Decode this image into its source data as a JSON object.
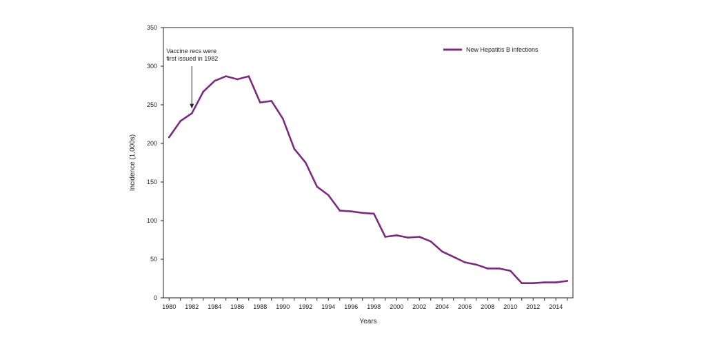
{
  "chart_data": {
    "type": "line",
    "title": "",
    "xlabel": "Years",
    "ylabel": "Incidence (1,000s)",
    "xlim": [
      1979.5,
      2015.5
    ],
    "ylim": [
      0,
      350
    ],
    "x_ticks": [
      1980,
      1982,
      1984,
      1986,
      1988,
      1990,
      1992,
      1994,
      1996,
      1998,
      2000,
      2002,
      2004,
      2006,
      2008,
      2010,
      2012,
      2014
    ],
    "x_tick_labels": [
      "1980",
      "1982",
      "1984",
      "1986",
      "1988",
      "1990",
      "1992",
      "1994",
      "1996",
      "1998",
      "2000",
      "2002",
      "2004",
      "2006",
      "2008",
      "2010",
      "2012",
      "2014"
    ],
    "y_ticks": [
      0,
      50,
      100,
      150,
      200,
      250,
      300,
      350
    ],
    "y_tick_labels": [
      "0",
      "50",
      "100",
      "150",
      "200",
      "250",
      "300",
      "350"
    ],
    "grid": false,
    "legend_position": "top-right",
    "series": [
      {
        "name": "New Hepatitis B infections",
        "color": "#7b2a7e",
        "x": [
          1980,
          1981,
          1982,
          1983,
          1984,
          1985,
          1986,
          1987,
          1988,
          1989,
          1990,
          1991,
          1992,
          1993,
          1994,
          1995,
          1996,
          1997,
          1998,
          1999,
          2000,
          2001,
          2002,
          2003,
          2004,
          2005,
          2006,
          2007,
          2008,
          2009,
          2010,
          2011,
          2012,
          2013,
          2014,
          2015
        ],
        "values": [
          208,
          229,
          239,
          267,
          281,
          287,
          283,
          287,
          253,
          255,
          232,
          193,
          175,
          144,
          133,
          113,
          112,
          110,
          109,
          79,
          81,
          78,
          79,
          73,
          60,
          53,
          46,
          43,
          38,
          38,
          35,
          19,
          19,
          20,
          20,
          22
        ]
      }
    ],
    "annotations": [
      {
        "lines": [
          "Vaccine recs were",
          "first issued in 1982"
        ],
        "x": 1982,
        "y": 245
      }
    ]
  }
}
